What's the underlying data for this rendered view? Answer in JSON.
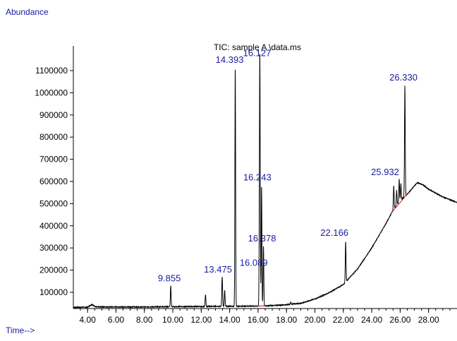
{
  "chart_data": {
    "type": "line",
    "title": "TIC: sample A \\data.ms",
    "ylabel": "Abundance",
    "xlabel": "Time-->",
    "xlim": [
      3.0,
      30.0
    ],
    "ylim": [
      20000,
      1170000
    ],
    "x_ticks": [
      "4.00",
      "6.00",
      "8.00",
      "10.00",
      "12.00",
      "14.00",
      "16.00",
      "18.00",
      "20.00",
      "22.00",
      "24.00",
      "26.00",
      "28.00"
    ],
    "y_ticks": [
      "100000",
      "200000",
      "300000",
      "400000",
      "500000",
      "600000",
      "700000",
      "800000",
      "900000",
      "1000000",
      "1100000"
    ],
    "peak_labels": [
      {
        "label": "9.855",
        "x": 9.855,
        "y": 130000
      },
      {
        "label": "13.475",
        "x": 13.475,
        "y": 170000
      },
      {
        "label": "14.393",
        "x": 14.393,
        "y": 1110000
      },
      {
        "label": "16.127",
        "x": 16.127,
        "y": 1140000
      },
      {
        "label": "16.243",
        "x": 16.243,
        "y": 580000
      },
      {
        "label": "16.378",
        "x": 16.378,
        "y": 310000
      },
      {
        "label": "16.089",
        "x": 16.089,
        "y": 200000
      },
      {
        "label": "22.166",
        "x": 22.166,
        "y": 330000
      },
      {
        "label": "25.932",
        "x": 25.932,
        "y": 610000
      },
      {
        "label": "26.330",
        "x": 26.33,
        "y": 1030000
      }
    ],
    "series": [
      {
        "baseline_points": [
          [
            3.0,
            32000
          ],
          [
            4.0,
            33000
          ],
          [
            4.3,
            45000
          ],
          [
            4.6,
            34000
          ],
          [
            6.0,
            34000
          ],
          [
            8.0,
            34000
          ],
          [
            10.0,
            35000
          ],
          [
            12.0,
            36000
          ],
          [
            14.0,
            37000
          ],
          [
            16.0,
            38000
          ],
          [
            17.0,
            40000
          ],
          [
            18.0,
            44000
          ],
          [
            19.0,
            50000
          ],
          [
            20.0,
            70000
          ],
          [
            21.0,
            98000
          ],
          [
            22.0,
            135000
          ],
          [
            23.0,
            205000
          ],
          [
            24.0,
            300000
          ],
          [
            25.0,
            410000
          ],
          [
            25.5,
            470000
          ],
          [
            26.0,
            515000
          ],
          [
            26.4,
            535000
          ],
          [
            26.8,
            565000
          ],
          [
            27.2,
            595000
          ],
          [
            27.6,
            585000
          ],
          [
            28.0,
            565000
          ],
          [
            29.0,
            530000
          ],
          [
            30.0,
            505000
          ]
        ],
        "peaks": [
          [
            9.855,
            130000
          ],
          [
            12.3,
            90000
          ],
          [
            13.475,
            170000
          ],
          [
            13.65,
            110000
          ],
          [
            14.393,
            1110000
          ],
          [
            16.089,
            200000
          ],
          [
            16.127,
            1140000
          ],
          [
            16.243,
            580000
          ],
          [
            16.378,
            310000
          ],
          [
            18.3,
            55000
          ],
          [
            22.166,
            330000
          ],
          [
            25.55,
            580000
          ],
          [
            25.75,
            560000
          ],
          [
            25.932,
            610000
          ],
          [
            26.05,
            590000
          ],
          [
            26.33,
            1030000
          ]
        ]
      }
    ]
  }
}
